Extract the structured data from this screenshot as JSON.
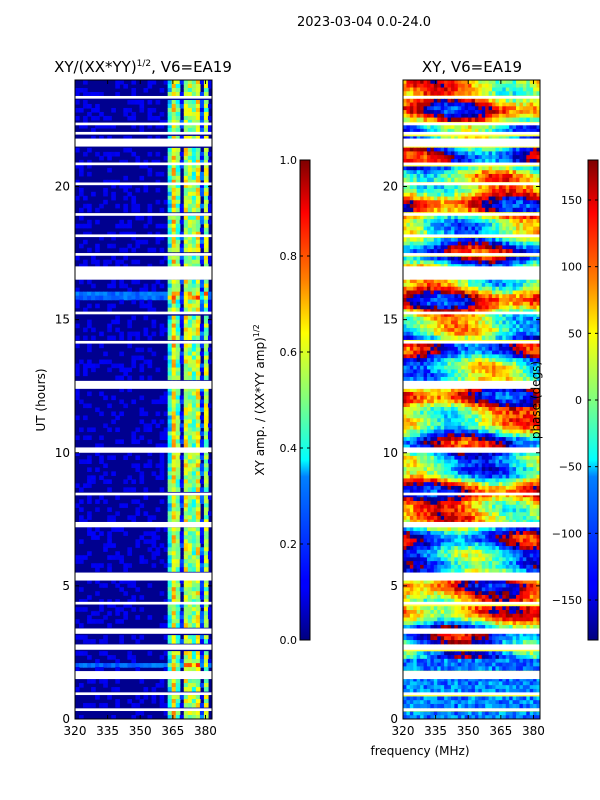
{
  "suptitle": "2023-03-04 0.0-24.0",
  "shared_xlabel": "frequency (MHz)",
  "chart_data": [
    {
      "type": "heatmap",
      "title_main": "XY/(XX*YY)",
      "title_sup": "1/2",
      "title_rest": ", V6=EA19",
      "ylabel": "UT (hours)",
      "xlim": [
        320,
        383
      ],
      "ylim": [
        0,
        24
      ],
      "xticks": [
        320,
        335,
        350,
        365,
        380
      ],
      "yticks": [
        0,
        5,
        10,
        15,
        20
      ],
      "colormap": "jet",
      "colorbar": {
        "label_main": "XY amp. / (XX*YY amp)",
        "label_sup": "1/2",
        "range": [
          0.0,
          1.0
        ],
        "ticks": [
          0.0,
          0.2,
          0.4,
          0.6,
          0.8,
          1.0
        ],
        "tick_labels": [
          "0.0",
          "0.2",
          "0.4",
          "0.6",
          "0.8",
          "1.0"
        ]
      }
    },
    {
      "type": "heatmap",
      "title_main": "XY, V6=EA19",
      "title_sup": "",
      "title_rest": "",
      "ylabel": "",
      "xlim": [
        320,
        383
      ],
      "ylim": [
        0,
        24
      ],
      "xticks": [
        320,
        335,
        350,
        365,
        380
      ],
      "yticks": [
        0,
        5,
        10,
        15,
        20
      ],
      "colormap": "jet",
      "colorbar": {
        "label_main": "phase (degs)",
        "label_sup": "",
        "range": [
          -180,
          180
        ],
        "ticks": [
          -150,
          -100,
          -50,
          0,
          50,
          100,
          150
        ],
        "tick_labels": [
          "−150",
          "−100",
          "−50",
          "0",
          "50",
          "100",
          "150"
        ]
      }
    }
  ]
}
